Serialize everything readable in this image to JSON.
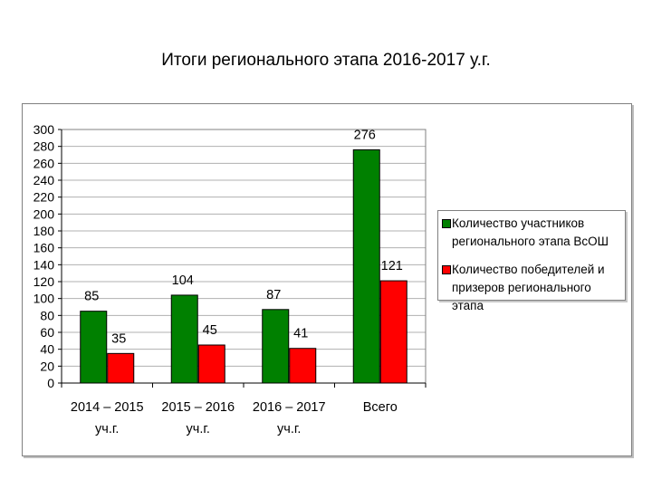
{
  "page": {
    "title": "Итоги регионального этапа 2016-2017 у.г."
  },
  "chart_data": {
    "type": "bar",
    "categories": [
      [
        "2014 – 2015",
        "уч.г."
      ],
      [
        "2015 – 2016",
        "уч.г."
      ],
      [
        "2016 – 2017",
        "уч.г."
      ],
      [
        "Всего",
        ""
      ]
    ],
    "series": [
      {
        "name": "Количество участников регионального этапа ВсОШ",
        "name_lines": [
          "Количество участников",
          "регионального этапа ВсОШ"
        ],
        "color": "#008000",
        "values": [
          85,
          104,
          87,
          276
        ]
      },
      {
        "name": "Количество победителей и призеров регионального этапа",
        "name_lines": [
          "Количество победителей и",
          "призеров регионального этапа"
        ],
        "color": "#ff0000",
        "values": [
          35,
          45,
          41,
          121
        ]
      }
    ],
    "ylim": [
      0,
      300
    ],
    "ytick_step": 20,
    "grid": true,
    "legend": "right"
  }
}
